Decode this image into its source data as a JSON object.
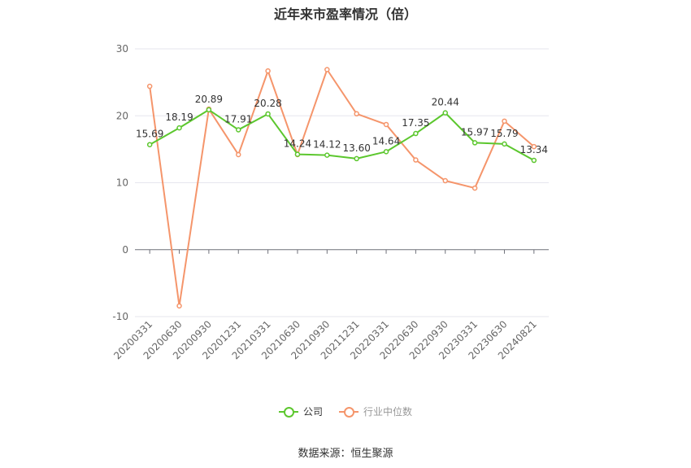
{
  "title": "近年来市盈率情况（倍）",
  "source": "数据来源：恒生聚源",
  "legend": [
    {
      "label": "公司",
      "color": "#5cc72e"
    },
    {
      "label": "行业中位数",
      "color": "#f5956b"
    }
  ],
  "chart_data": {
    "type": "line",
    "title": "近年来市盈率情况（倍）",
    "xlabel": "",
    "ylabel": "",
    "ylim": [
      -10,
      30
    ],
    "yticks": [
      -10,
      0,
      10,
      20,
      30
    ],
    "grid": true,
    "legend_position": "bottom",
    "categories": [
      "20200331",
      "20200630",
      "20200930",
      "20201231",
      "20210331",
      "20210630",
      "20210930",
      "20211231",
      "20220331",
      "20220630",
      "20220930",
      "20230331",
      "20230630",
      "20240821"
    ],
    "series": [
      {
        "name": "公司",
        "color": "#5cc72e",
        "show_labels": true,
        "values": [
          15.69,
          18.19,
          20.89,
          17.91,
          20.28,
          14.24,
          14.12,
          13.6,
          14.64,
          17.35,
          20.44,
          15.97,
          15.79,
          13.34
        ]
      },
      {
        "name": "行业中位数",
        "color": "#f5956b",
        "show_labels": false,
        "values": [
          24.4,
          -8.4,
          21.0,
          14.2,
          26.7,
          14.2,
          26.9,
          20.3,
          18.7,
          13.4,
          10.3,
          9.2,
          19.2,
          15.4
        ]
      }
    ]
  }
}
